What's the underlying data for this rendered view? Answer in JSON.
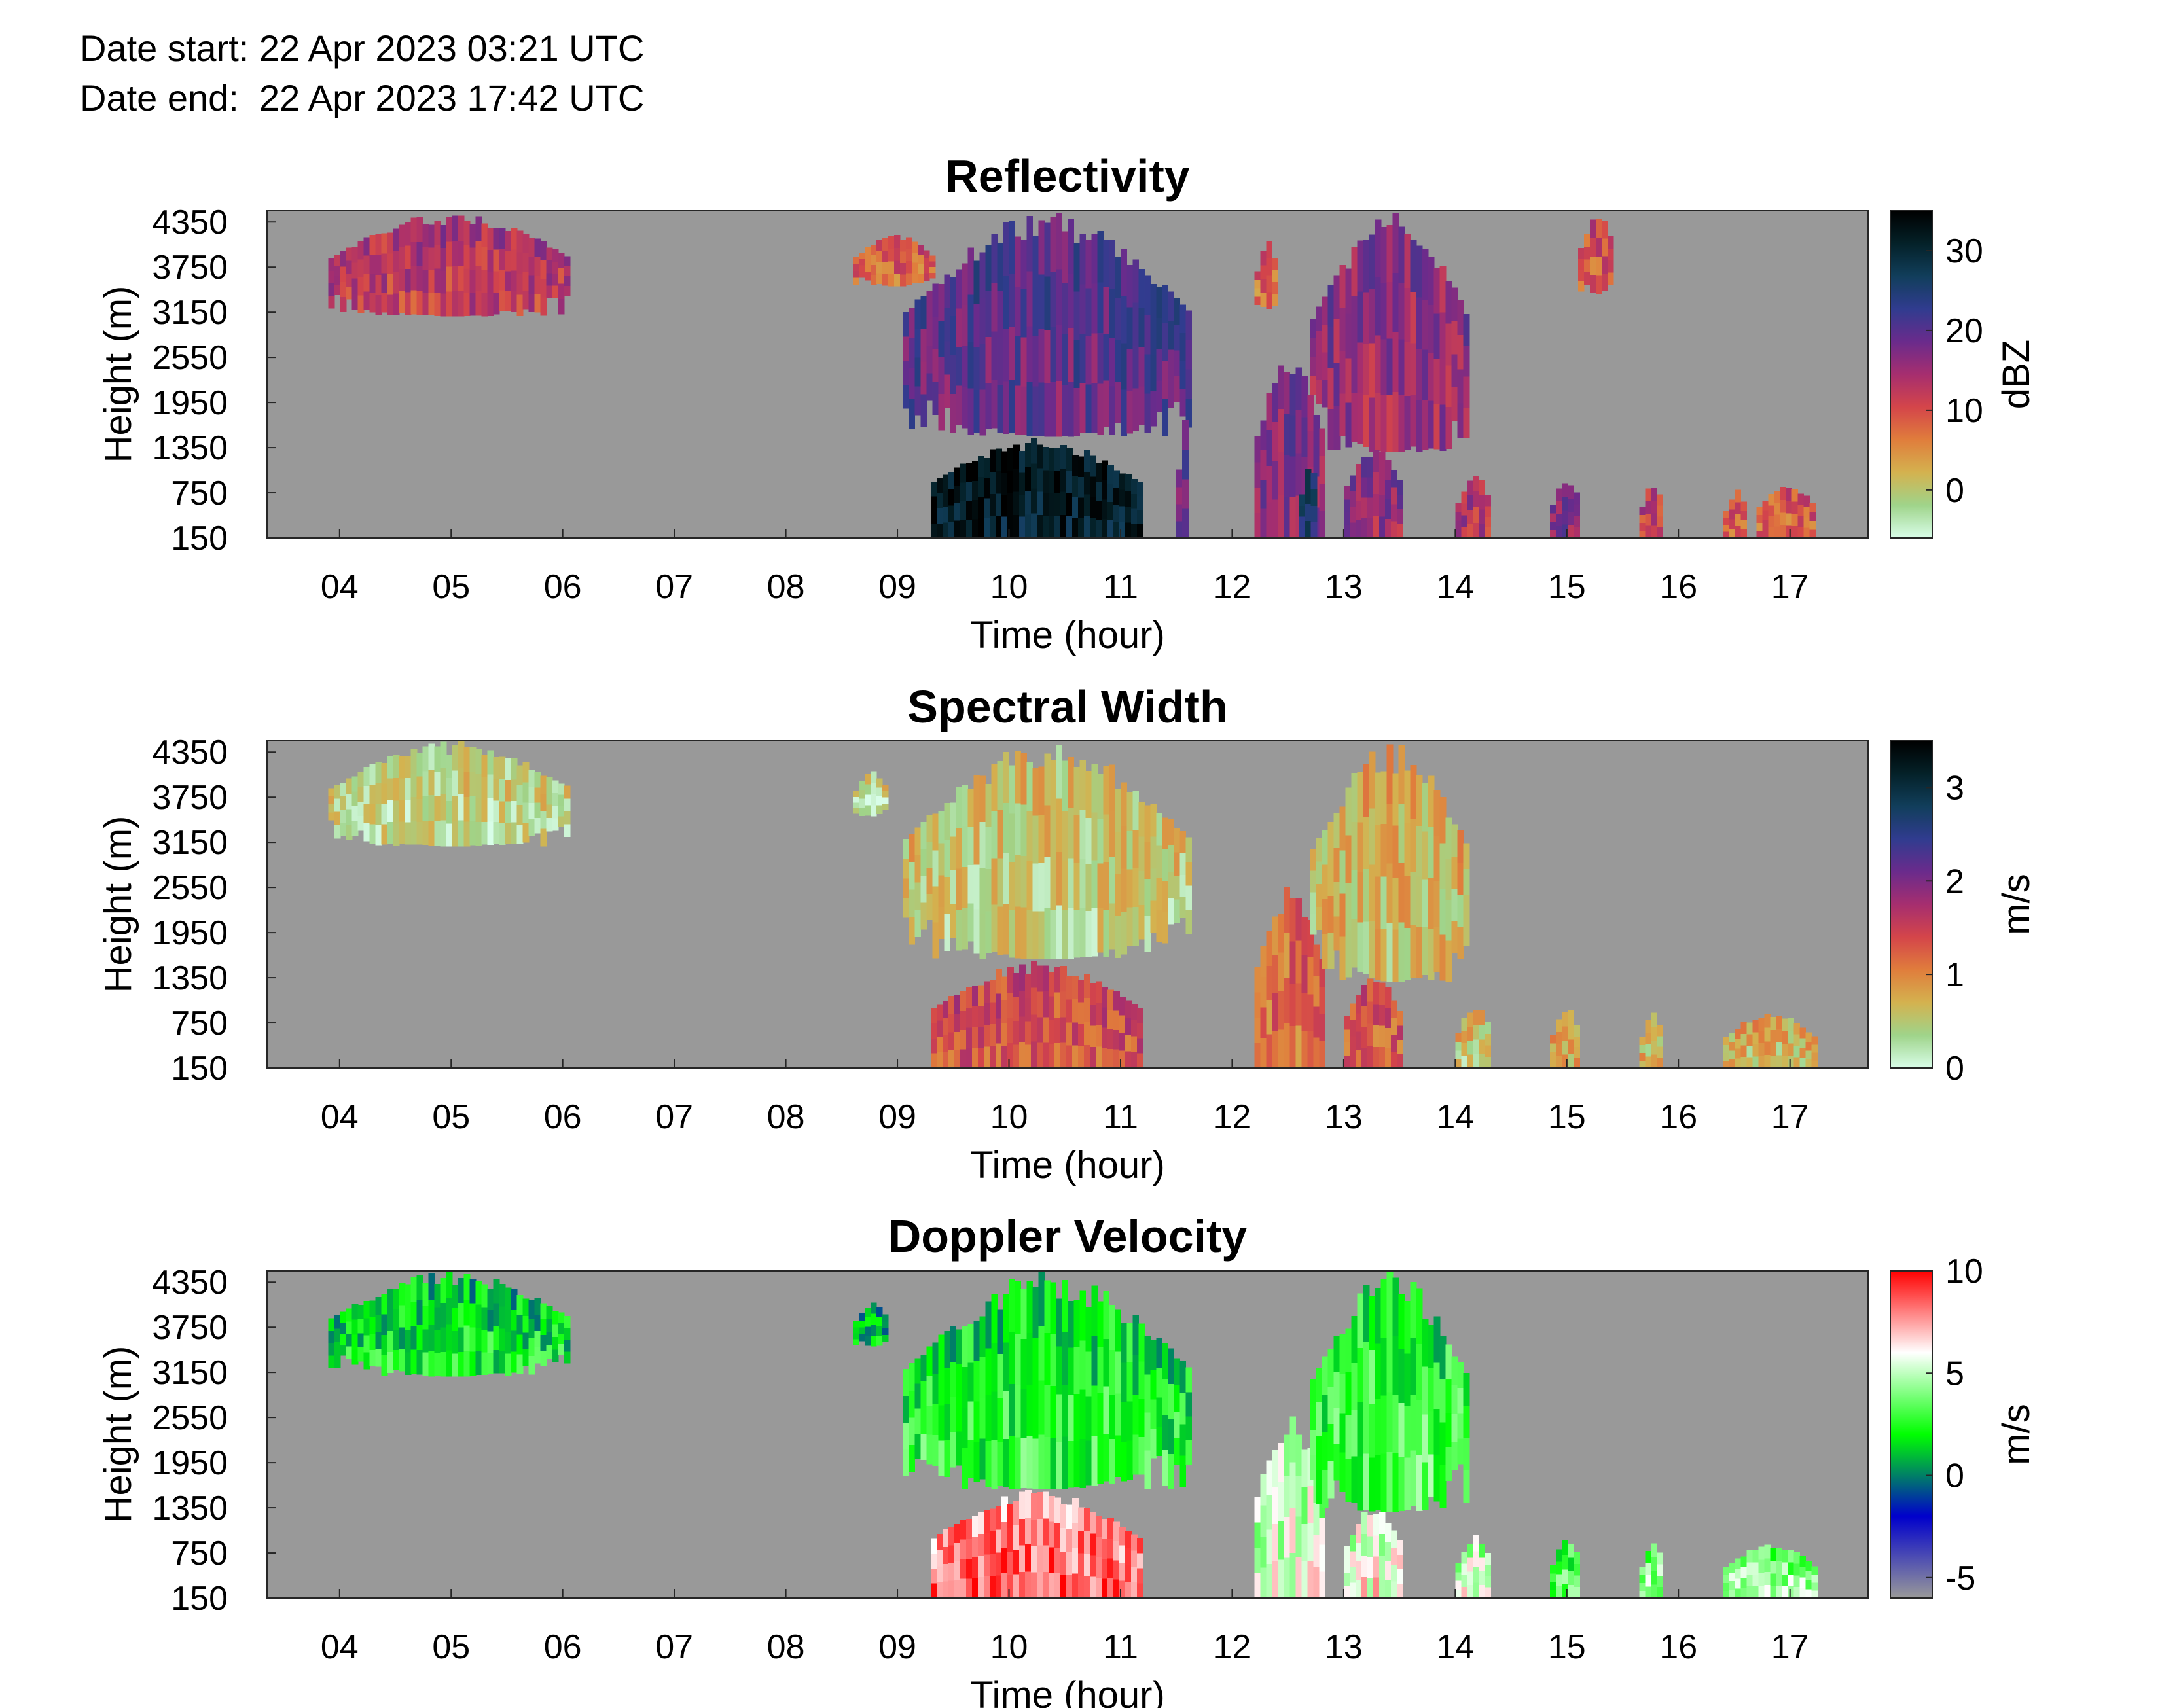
{
  "header": {
    "date_start": "Date start: 22 Apr 2023 03:21 UTC",
    "date_end": "Date end:  22 Apr 2023 17:42 UTC"
  },
  "chart_data": [
    {
      "type": "heatmap",
      "title": "Reflectivity",
      "xlabel": "Time (hour)",
      "ylabel": "Height (m)",
      "x_ticks": [
        "04",
        "05",
        "06",
        "07",
        "08",
        "09",
        "10",
        "11",
        "12",
        "13",
        "14",
        "15",
        "16",
        "17"
      ],
      "y_ticks": [
        "150",
        "750",
        "1350",
        "1950",
        "2550",
        "3150",
        "3750",
        "4350"
      ],
      "xlim": [
        3.35,
        17.7
      ],
      "ylim": [
        150,
        4500
      ],
      "background_color": "#999999",
      "colorbar": {
        "label": "dBZ",
        "ticks": [
          "0",
          "10",
          "20",
          "30"
        ],
        "range": [
          -6,
          35
        ],
        "colormap": "cmocean-thermal-reversed",
        "stops": [
          "#d8fde8",
          "#9fd48a",
          "#d4b24f",
          "#e07d3c",
          "#d4454a",
          "#a62e6f",
          "#6a2b8c",
          "#303c8f",
          "#113e5b",
          "#042128",
          "#000000"
        ]
      },
      "echoes": [
        {
          "t0": 3.9,
          "t1": 6.05,
          "h0": 3100,
          "h1": 4500,
          "dbz": 13
        },
        {
          "t0": 8.6,
          "t1": 9.3,
          "h0": 3500,
          "h1": 4200,
          "dbz": 9
        },
        {
          "t0": 9.05,
          "t1": 11.6,
          "h0": 1500,
          "h1": 4500,
          "dbz": 20
        },
        {
          "t0": 9.3,
          "t1": 11.15,
          "h0": 150,
          "h1": 1500,
          "dbz": 32
        },
        {
          "t0": 11.5,
          "t1": 11.6,
          "h0": 150,
          "h1": 1800,
          "dbz": 18
        },
        {
          "t0": 12.2,
          "t1": 12.8,
          "h0": 150,
          "h1": 2600,
          "dbz": 17
        },
        {
          "t0": 12.6,
          "t1": 12.75,
          "h0": 150,
          "h1": 1200,
          "dbz": 27
        },
        {
          "t0": 12.2,
          "t1": 12.4,
          "h0": 3200,
          "h1": 4100,
          "dbz": 8
        },
        {
          "t0": 12.7,
          "t1": 14.1,
          "h0": 1300,
          "h1": 4500,
          "dbz": 16
        },
        {
          "t0": 13.0,
          "t1": 13.5,
          "h0": 150,
          "h1": 1400,
          "dbz": 16
        },
        {
          "t0": 14.0,
          "t1": 14.3,
          "h0": 150,
          "h1": 1000,
          "dbz": 14
        },
        {
          "t0": 14.85,
          "t1": 15.1,
          "h0": 150,
          "h1": 950,
          "dbz": 18
        },
        {
          "t0": 15.1,
          "t1": 15.4,
          "h0": 3400,
          "h1": 4500,
          "dbz": 10
        },
        {
          "t0": 15.65,
          "t1": 15.85,
          "h0": 150,
          "h1": 900,
          "dbz": 12
        },
        {
          "t0": 16.4,
          "t1": 16.6,
          "h0": 150,
          "h1": 800,
          "dbz": 10
        },
        {
          "t0": 16.7,
          "t1": 17.2,
          "h0": 150,
          "h1": 900,
          "dbz": 9
        }
      ]
    },
    {
      "type": "heatmap",
      "title": "Spectral Width",
      "xlabel": "Time (hour)",
      "ylabel": "Height (m)",
      "x_ticks": [
        "04",
        "05",
        "06",
        "07",
        "08",
        "09",
        "10",
        "11",
        "12",
        "13",
        "14",
        "15",
        "16",
        "17"
      ],
      "y_ticks": [
        "150",
        "750",
        "1350",
        "1950",
        "2550",
        "3150",
        "3750",
        "4350"
      ],
      "xlim": [
        3.35,
        17.7
      ],
      "ylim": [
        150,
        4500
      ],
      "background_color": "#999999",
      "colorbar": {
        "label": "m/s",
        "ticks": [
          "0",
          "1",
          "2",
          "3"
        ],
        "range": [
          0,
          3.5
        ],
        "colormap": "cmocean-thermal-reversed",
        "stops": [
          "#d8fde8",
          "#9fd48a",
          "#d4b24f",
          "#e07d3c",
          "#d4454a",
          "#a62e6f",
          "#6a2b8c",
          "#303c8f",
          "#113e5b",
          "#042128",
          "#000000"
        ]
      },
      "echoes": [
        {
          "t0": 3.9,
          "t1": 6.05,
          "h0": 3100,
          "h1": 4500,
          "sw": 0.45
        },
        {
          "t0": 8.6,
          "t1": 8.9,
          "h0": 3500,
          "h1": 4100,
          "sw": 0.4
        },
        {
          "t0": 9.05,
          "t1": 11.6,
          "h0": 1600,
          "h1": 4500,
          "sw": 0.55
        },
        {
          "t0": 9.3,
          "t1": 11.15,
          "h0": 150,
          "h1": 1600,
          "sw": 1.4
        },
        {
          "t0": 12.2,
          "t1": 12.8,
          "h0": 150,
          "h1": 2600,
          "sw": 1.2
        },
        {
          "t0": 12.7,
          "t1": 14.1,
          "h0": 1300,
          "h1": 4500,
          "sw": 0.7
        },
        {
          "t0": 13.0,
          "t1": 13.5,
          "h0": 150,
          "h1": 1400,
          "sw": 1.3
        },
        {
          "t0": 14.0,
          "t1": 14.3,
          "h0": 150,
          "h1": 1000,
          "sw": 0.6
        },
        {
          "t0": 14.85,
          "t1": 15.1,
          "h0": 150,
          "h1": 950,
          "sw": 0.8
        },
        {
          "t0": 15.65,
          "t1": 15.85,
          "h0": 150,
          "h1": 900,
          "sw": 0.7
        },
        {
          "t0": 16.4,
          "t1": 17.2,
          "h0": 150,
          "h1": 900,
          "sw": 0.7
        }
      ]
    },
    {
      "type": "heatmap",
      "title": "Doppler Velocity",
      "xlabel": "Time (hour)",
      "ylabel": "Height (m)",
      "x_ticks": [
        "04",
        "05",
        "06",
        "07",
        "08",
        "09",
        "10",
        "11",
        "12",
        "13",
        "14",
        "15",
        "16",
        "17"
      ],
      "y_ticks": [
        "150",
        "750",
        "1350",
        "1950",
        "2550",
        "3150",
        "3750",
        "4350"
      ],
      "xlim": [
        3.35,
        17.7
      ],
      "ylim": [
        150,
        4500
      ],
      "background_color": "#999999",
      "colorbar": {
        "label": "m/s",
        "ticks": [
          "-5",
          "0",
          "5",
          "10"
        ],
        "range": [
          -6,
          10
        ],
        "colormap": "diverging-green-white-red",
        "stops": [
          "#999999",
          "#0000cc",
          "#00ff00",
          "#ffffff",
          "#ff0000"
        ]
      },
      "echoes": [
        {
          "t0": 3.9,
          "t1": 6.05,
          "h0": 3100,
          "h1": 4500,
          "vel": 1.5
        },
        {
          "t0": 8.6,
          "t1": 8.9,
          "h0": 3500,
          "h1": 4100,
          "vel": 0.5
        },
        {
          "t0": 9.05,
          "t1": 11.6,
          "h0": 1600,
          "h1": 4500,
          "vel": 2
        },
        {
          "t0": 9.3,
          "t1": 11.15,
          "h0": 150,
          "h1": 1600,
          "vel": 8
        },
        {
          "t0": 12.2,
          "t1": 12.8,
          "h0": 150,
          "h1": 2600,
          "vel": 5
        },
        {
          "t0": 12.7,
          "t1": 14.1,
          "h0": 1300,
          "h1": 4500,
          "vel": 2.5
        },
        {
          "t0": 13.0,
          "t1": 13.5,
          "h0": 150,
          "h1": 1400,
          "vel": 5.5
        },
        {
          "t0": 14.0,
          "t1": 14.3,
          "h0": 150,
          "h1": 1000,
          "vel": 5
        },
        {
          "t0": 14.85,
          "t1": 15.1,
          "h0": 150,
          "h1": 950,
          "vel": 3
        },
        {
          "t0": 15.65,
          "t1": 15.85,
          "h0": 150,
          "h1": 900,
          "vel": 4
        },
        {
          "t0": 16.4,
          "t1": 17.2,
          "h0": 150,
          "h1": 900,
          "vel": 4
        }
      ]
    }
  ]
}
